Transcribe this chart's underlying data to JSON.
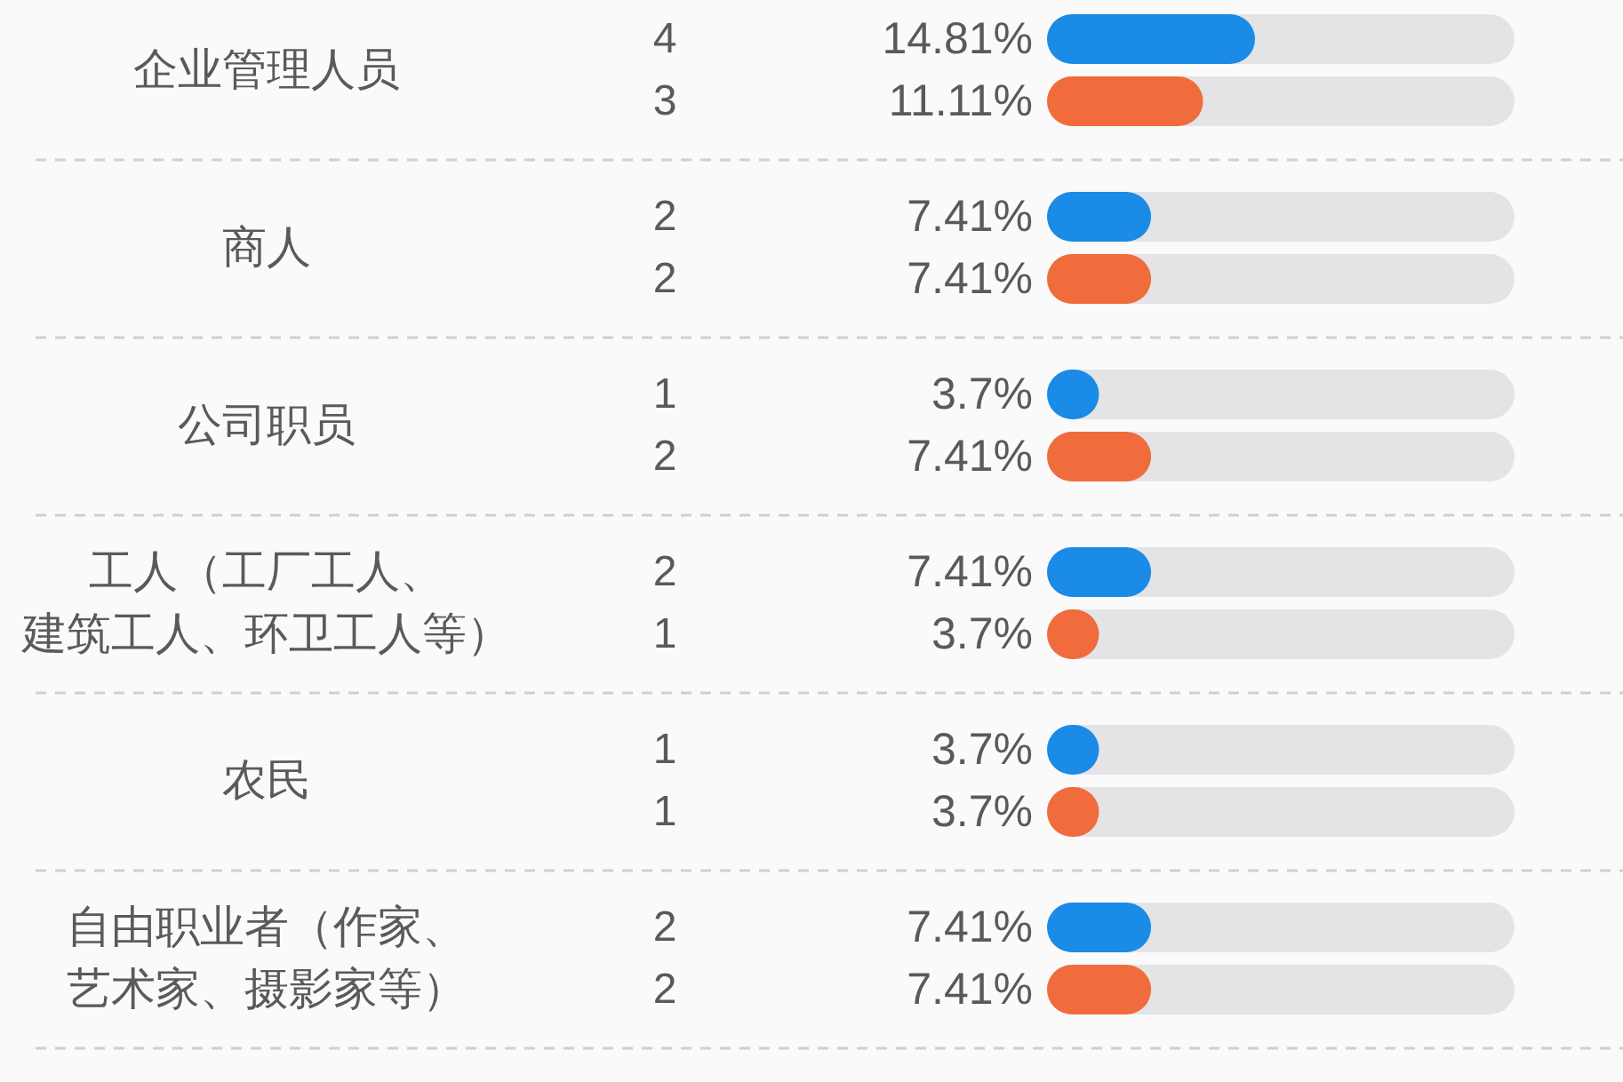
{
  "chart_data": {
    "type": "bar",
    "orientation": "horizontal",
    "categories": [
      "企业管理人员",
      "商人",
      "公司职员",
      "工人（工厂工人、建筑工人、环卫工人等）",
      "农民",
      "自由职业者（作家、艺术家、摄影家等）"
    ],
    "series": [
      {
        "color": "#1a8be6",
        "values": [
          14.81,
          7.41,
          3.7,
          7.41,
          3.7,
          7.41
        ],
        "value_labels": [
          "14.81%",
          "7.41%",
          "3.7%",
          "7.41%",
          "3.7%",
          "7.41%"
        ]
      },
      {
        "color": "#f06c3c",
        "values": [
          11.11,
          7.41,
          7.41,
          3.7,
          3.7,
          7.41
        ],
        "value_labels": [
          "11.11%",
          "7.41%",
          "7.41%",
          "3.7%",
          "3.7%",
          "7.41%"
        ]
      }
    ],
    "annotations": [
      "4",
      "3",
      "2",
      "2",
      "1",
      "2",
      "2",
      "1",
      "1",
      "1",
      "2",
      "2"
    ],
    "tick_labels": "y"
  }
}
